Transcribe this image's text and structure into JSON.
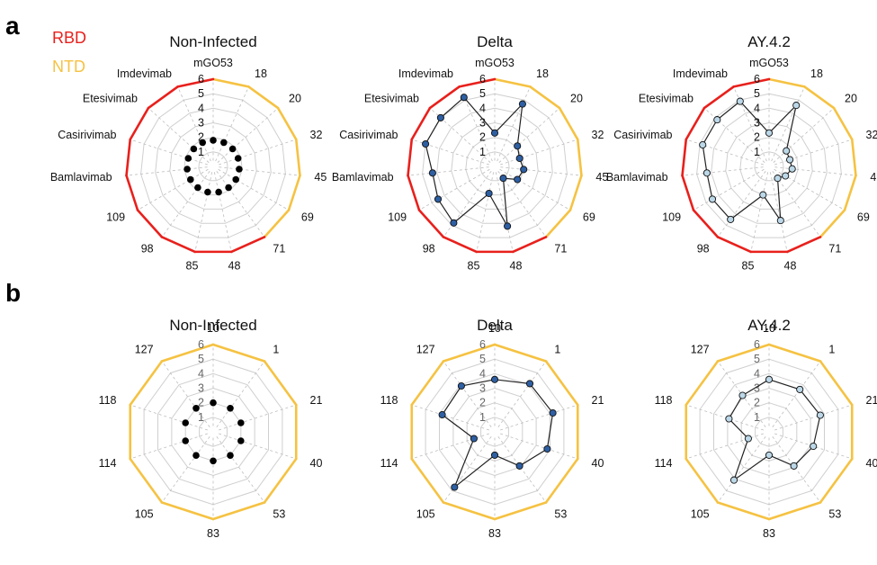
{
  "panels": [
    {
      "letter": "a"
    },
    {
      "letter": "b"
    }
  ],
  "legend": [
    {
      "label": "RBD",
      "color": "#e8201c"
    },
    {
      "label": "NTD",
      "color": "#f5c242"
    }
  ],
  "colors": {
    "rbd": "#e8201c",
    "ntd": "#f5c242",
    "grid": "#cfcfcf",
    "noninfected_marker": "#000000",
    "delta_marker": "#2e5fa3",
    "ay_marker": "#bcd8e8",
    "line": "#222222"
  },
  "chart_data": [
    {
      "type": "radar",
      "panel": "a",
      "title": "Non-Infected",
      "axes": [
        "mGO53",
        "18",
        "20",
        "32",
        "45",
        "69",
        "71",
        "48",
        "85",
        "98",
        "109",
        "Bamlavimab",
        "Casirivimab",
        "Etesivimab",
        "Imdevimab"
      ],
      "axis_groups": [
        "RBD",
        "NTD",
        "NTD",
        "NTD",
        "NTD",
        "NTD",
        "NTD",
        "RBD",
        "RBD",
        "RBD",
        "RBD",
        "RBD",
        "RBD",
        "RBD",
        "RBD"
      ],
      "ticks": [
        "1",
        "2",
        "3",
        "4",
        "5",
        "6"
      ],
      "rlim": [
        0,
        6
      ],
      "values": [
        1.8,
        1.8,
        1.8,
        1.8,
        1.8,
        1.8,
        1.8,
        1.8,
        1.8,
        1.8,
        1.8,
        1.8,
        1.8,
        1.8,
        1.8
      ],
      "marker": "noninfected",
      "connected": false
    },
    {
      "type": "radar",
      "panel": "a",
      "title": "Delta",
      "axes": [
        "mGO53",
        "18",
        "20",
        "32",
        "45",
        "69",
        "71",
        "48",
        "85",
        "98",
        "109",
        "Bamlavimab",
        "Casirivimab",
        "Etesivimab",
        "Imdevimab"
      ],
      "axis_groups": [
        "RBD",
        "NTD",
        "NTD",
        "NTD",
        "NTD",
        "NTD",
        "NTD",
        "RBD",
        "RBD",
        "RBD",
        "RBD",
        "RBD",
        "RBD",
        "RBD",
        "RBD"
      ],
      "ticks": [
        "1",
        "2",
        "3",
        "4",
        "5",
        "6"
      ],
      "rlim": [
        0,
        6
      ],
      "values": [
        2.3,
        4.7,
        2.1,
        1.8,
        2.0,
        1.8,
        1.0,
        4.2,
        1.9,
        4.8,
        4.5,
        4.3,
        5.0,
        5.0,
        5.2
      ],
      "marker": "delta",
      "connected": true
    },
    {
      "type": "radar",
      "panel": "a",
      "title": "AY.4.2",
      "axes": [
        "mGO53",
        "18",
        "20",
        "32",
        "45",
        "69",
        "71",
        "48",
        "85",
        "98",
        "109",
        "Bamlavimab",
        "Casirivimab",
        "Etesivimab",
        "Imdevimab"
      ],
      "axis_groups": [
        "RBD",
        "NTD",
        "NTD",
        "NTD",
        "NTD",
        "NTD",
        "NTD",
        "RBD",
        "RBD",
        "RBD",
        "RBD",
        "RBD",
        "RBD",
        "RBD",
        "RBD"
      ],
      "ticks": [
        "1",
        "2",
        "3",
        "4",
        "5",
        "6"
      ],
      "rlim": [
        0,
        6
      ],
      "values": [
        2.3,
        4.6,
        1.6,
        1.5,
        1.6,
        1.3,
        1.0,
        3.8,
        2.0,
        4.5,
        4.5,
        4.3,
        4.8,
        4.8,
        4.9
      ],
      "marker": "ay",
      "connected": true
    },
    {
      "type": "radar",
      "panel": "b",
      "title": "Non-Infected",
      "axes": [
        "10",
        "1",
        "21",
        "40",
        "53",
        "83",
        "105",
        "114",
        "118",
        "127"
      ],
      "axis_groups": [
        "NTD",
        "NTD",
        "NTD",
        "NTD",
        "NTD",
        "NTD",
        "NTD",
        "NTD",
        "NTD",
        "NTD"
      ],
      "ticks": [
        "1",
        "2",
        "3",
        "4",
        "5",
        "6"
      ],
      "rlim": [
        0,
        6
      ],
      "values": [
        2.0,
        2.0,
        2.0,
        2.0,
        2.0,
        2.0,
        2.0,
        2.0,
        2.0,
        2.0
      ],
      "marker": "noninfected",
      "connected": false
    },
    {
      "type": "radar",
      "panel": "b",
      "title": "Delta",
      "axes": [
        "10",
        "1",
        "21",
        "40",
        "53",
        "83",
        "105",
        "114",
        "118",
        "127"
      ],
      "axis_groups": [
        "NTD",
        "NTD",
        "NTD",
        "NTD",
        "NTD",
        "NTD",
        "NTD",
        "NTD",
        "NTD",
        "NTD"
      ],
      "ticks": [
        "1",
        "2",
        "3",
        "4",
        "5",
        "6"
      ],
      "rlim": [
        0,
        6
      ],
      "values": [
        3.6,
        4.1,
        4.2,
        3.8,
        2.9,
        1.6,
        4.7,
        1.5,
        3.8,
        3.9
      ],
      "marker": "delta",
      "connected": true
    },
    {
      "type": "radar",
      "panel": "b",
      "title": "AY.4.2",
      "axes": [
        "10",
        "1",
        "21",
        "40",
        "53",
        "83",
        "105",
        "114",
        "118",
        "127"
      ],
      "axis_groups": [
        "NTD",
        "NTD",
        "NTD",
        "NTD",
        "NTD",
        "NTD",
        "NTD",
        "NTD",
        "NTD",
        "NTD"
      ],
      "ticks": [
        "1",
        "2",
        "3",
        "4",
        "5",
        "6"
      ],
      "rlim": [
        0,
        6
      ],
      "values": [
        3.6,
        3.6,
        3.7,
        3.2,
        2.9,
        1.6,
        4.1,
        1.5,
        2.9,
        3.1
      ],
      "marker": "ay",
      "connected": true
    }
  ]
}
